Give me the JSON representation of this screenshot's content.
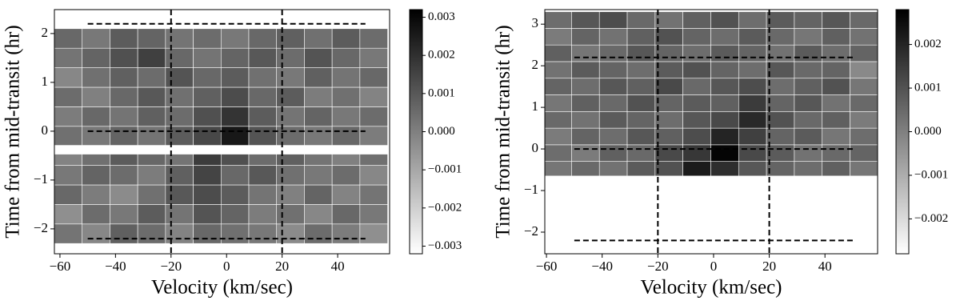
{
  "chart_data": [
    {
      "type": "heatmap",
      "xlabel": "Velocity (km/sec)",
      "ylabel": "Time from mid-transit (hr)",
      "xlim": [
        -62,
        58.7
      ],
      "ylim": [
        -2.51,
        2.49
      ],
      "xticks": [
        {
          "value": -60,
          "label": "−60"
        },
        {
          "value": -40,
          "label": "−40"
        },
        {
          "value": -20,
          "label": "−20"
        },
        0,
        20,
        40
      ],
      "yticks": [
        {
          "value": -2,
          "label": "−2"
        },
        {
          "value": -1,
          "label": "−1"
        },
        0,
        1,
        2
      ],
      "x_edges": [
        -62,
        -52,
        -42,
        -32,
        -22,
        -12,
        -2,
        8,
        18,
        28,
        38,
        48,
        58
      ],
      "y_edges": [
        -2.3,
        -1.9,
        -1.5,
        -1.1,
        -0.7,
        -0.47,
        -0.29,
        0.1,
        0.5,
        0.9,
        1.3,
        1.7,
        2.1
      ],
      "z": [
        [
          0.0003,
          -0.0002,
          0.0008,
          0.0005,
          -0.0001,
          0.0006,
          0.0004,
          0.0002,
          -0.0003,
          0.0005,
          0.0001,
          -0.0004
        ],
        [
          -0.0004,
          0.0005,
          0.0002,
          0.0009,
          0.0003,
          0.0011,
          0.0007,
          0.0001,
          0.0004,
          -0.0002,
          0.0006,
          0.0002
        ],
        [
          0.0006,
          0.0001,
          -0.0003,
          0.0004,
          0.001,
          0.0013,
          0.0009,
          0.0003,
          0.0,
          0.0007,
          -0.0001,
          0.0003
        ],
        [
          0.0002,
          0.0007,
          0.0005,
          0.0001,
          0.0008,
          0.0015,
          0.0006,
          0.001,
          0.0004,
          0.0002,
          0.0005,
          -0.0002
        ],
        [
          -0.0001,
          0.0004,
          0.0009,
          0.0006,
          0.0003,
          0.0017,
          0.0012,
          0.0005,
          0.0008,
          0.0003,
          0.0,
          0.0004
        ],
        null,
        [
          0.0004,
          0.0002,
          0.0007,
          0.0003,
          0.0009,
          0.0014,
          0.0026,
          0.0011,
          0.0005,
          0.0002,
          0.0006,
          0.0001
        ],
        [
          0.0001,
          0.0006,
          0.0003,
          0.0008,
          0.0005,
          0.0012,
          0.0019,
          0.0009,
          0.0003,
          0.0007,
          0.0002,
          0.0005
        ],
        [
          0.0005,
          0.0,
          0.0006,
          0.001,
          0.0004,
          0.0008,
          0.0013,
          0.0006,
          0.0009,
          0.0001,
          0.0004,
          -0.0001
        ],
        [
          -0.0002,
          0.0004,
          0.0008,
          0.0005,
          0.0011,
          0.0006,
          0.0009,
          0.0004,
          0.0002,
          0.0008,
          0.0003,
          0.0006
        ],
        [
          0.0003,
          0.0007,
          0.0012,
          0.0016,
          0.0006,
          0.0003,
          0.0007,
          0.001,
          0.0005,
          0.0011,
          0.0006,
          0.0002
        ],
        [
          0.0006,
          0.0002,
          0.0009,
          0.0007,
          0.0003,
          0.0005,
          0.0002,
          0.0006,
          0.0008,
          0.0004,
          0.0009,
          0.0005
        ]
      ],
      "hlines": [
        -2.2,
        0,
        2.2
      ],
      "hline_xrange": [
        -50,
        50
      ],
      "vlines": [
        -20,
        20
      ],
      "cmap": [
        "#ffffff",
        "#000000"
      ],
      "colorbar": {
        "lim": [
          -0.0032,
          0.0032
        ],
        "ticks": [
          {
            "value": -0.003,
            "label": "−0.003"
          },
          {
            "value": -0.002,
            "label": "−0.002"
          },
          {
            "value": -0.001,
            "label": "−0.001"
          },
          {
            "value": 0,
            "label": "0.000"
          },
          0.001,
          0.002,
          0.003
        ]
      }
    },
    {
      "type": "heatmap",
      "xlabel": "Velocity (km/sec)",
      "ylabel": "Time from mid-transit (hr)",
      "xlim": [
        -60.6,
        58.9
      ],
      "ylim": [
        -2.52,
        3.35
      ],
      "xticks": [
        {
          "value": -60,
          "label": "−60"
        },
        {
          "value": -40,
          "label": "−40"
        },
        {
          "value": -20,
          "label": "−20"
        },
        0,
        20,
        40
      ],
      "yticks": [
        {
          "value": -2,
          "label": "−2"
        },
        {
          "value": -1,
          "label": "−1"
        },
        0,
        1,
        2,
        3
      ],
      "x_edges": [
        -61,
        -51,
        -41,
        -31,
        -21,
        -11,
        -1,
        9,
        19,
        29,
        39,
        49,
        59
      ],
      "y_edges": [
        -0.65,
        -0.3,
        0.1,
        0.5,
        0.9,
        1.3,
        1.7,
        2.1,
        2.5,
        2.9,
        3.3
      ],
      "z": [
        [
          0.0002,
          0.0005,
          0.0003,
          0.0008,
          0.001,
          0.0022,
          0.0018,
          0.0009,
          0.0006,
          0.0004,
          0.0007,
          0.0002
        ],
        [
          0.0004,
          0.0001,
          0.0007,
          0.0005,
          0.0012,
          0.0016,
          0.0027,
          0.0012,
          0.0008,
          0.0003,
          0.0005,
          0.0006
        ],
        [
          0.0001,
          0.0006,
          0.0004,
          0.0009,
          0.0007,
          0.0011,
          0.002,
          0.0014,
          0.0006,
          0.0008,
          0.0002,
          0.0004
        ],
        [
          0.0005,
          0.0003,
          0.0008,
          0.0006,
          0.0004,
          0.0009,
          0.0012,
          0.0019,
          0.001,
          0.0005,
          0.0007,
          0.0001
        ],
        [
          0.0002,
          0.0007,
          0.0005,
          0.001,
          0.0006,
          0.0008,
          0.0007,
          0.0015,
          0.0006,
          0.0009,
          0.0003,
          0.0005
        ],
        [
          0.0006,
          0.0004,
          0.0009,
          0.0007,
          0.0012,
          0.0005,
          0.0009,
          0.0011,
          0.0004,
          0.0007,
          0.001,
          0.0002
        ],
        [
          0.0003,
          0.0008,
          0.0006,
          0.0004,
          0.0008,
          0.001,
          0.0006,
          0.0004,
          0.0009,
          0.0005,
          0.0006,
          -0.0002
        ],
        [
          0.0007,
          0.0002,
          0.0005,
          0.0009,
          0.0006,
          0.0004,
          0.0008,
          0.0006,
          0.0003,
          0.0008,
          0.0004,
          0.0006
        ],
        [
          0.0001,
          0.0006,
          0.0003,
          0.0007,
          0.001,
          0.0006,
          0.0004,
          0.0008,
          0.0005,
          0.0002,
          0.0007,
          0.0003
        ],
        [
          0.0004,
          0.0009,
          0.0011,
          0.0005,
          0.0003,
          0.0007,
          0.001,
          0.0004,
          0.0008,
          0.0006,
          0.0009,
          0.0005
        ]
      ],
      "hlines": [
        -2.2,
        0,
        2.2
      ],
      "hline_xrange": [
        -50,
        50
      ],
      "vlines": [
        -20,
        20
      ],
      "cmap": [
        "#ffffff",
        "#000000"
      ],
      "colorbar": {
        "lim": [
          -0.0028,
          0.0028
        ],
        "ticks": [
          {
            "value": -0.002,
            "label": "−0.002"
          },
          {
            "value": -0.001,
            "label": "−0.001"
          },
          {
            "value": 0,
            "label": "0.000"
          },
          0.001,
          0.002
        ]
      }
    }
  ]
}
